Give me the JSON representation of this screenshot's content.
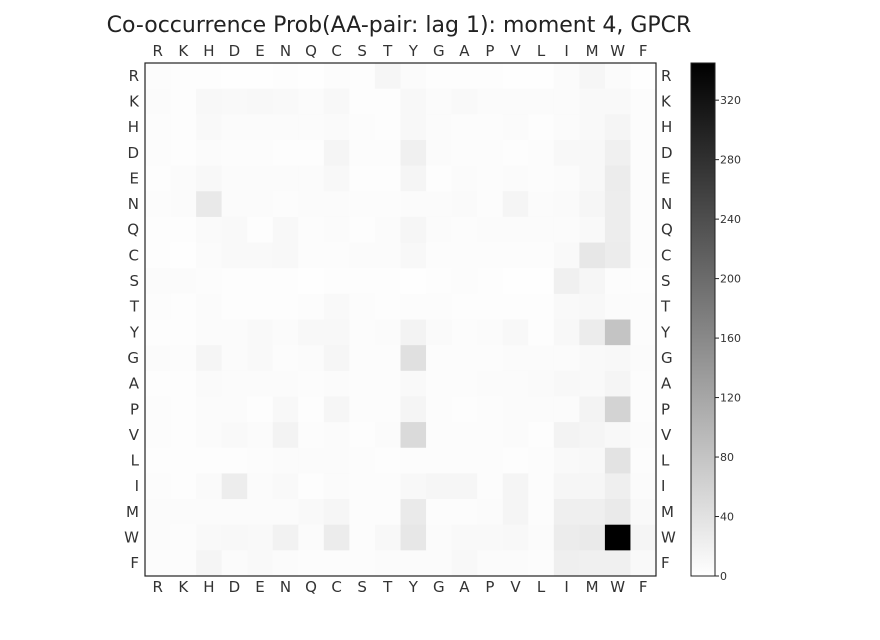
{
  "chart_data": {
    "type": "heatmap",
    "title": "Co-occurrence Prob(AA-pair: lag 1): moment 4, GPCR",
    "x_labels": [
      "R",
      "K",
      "H",
      "D",
      "E",
      "N",
      "Q",
      "C",
      "S",
      "T",
      "Y",
      "G",
      "A",
      "P",
      "V",
      "L",
      "I",
      "M",
      "W",
      "F"
    ],
    "y_labels": [
      "R",
      "K",
      "H",
      "D",
      "E",
      "N",
      "Q",
      "C",
      "S",
      "T",
      "Y",
      "G",
      "A",
      "P",
      "V",
      "L",
      "I",
      "M",
      "W",
      "F"
    ],
    "colorscale": {
      "min": 0,
      "max": 345,
      "low_color": "#ffffff",
      "high_color": "#000000",
      "ticks": [
        0,
        40,
        80,
        120,
        160,
        200,
        240,
        280,
        320
      ]
    },
    "values": [
      [
        4,
        3,
        3,
        2,
        2,
        3,
        2,
        4,
        3,
        12,
        6,
        3,
        3,
        3,
        2,
        2,
        5,
        12,
        6,
        2
      ],
      [
        5,
        3,
        9,
        8,
        10,
        8,
        6,
        10,
        3,
        3,
        9,
        6,
        8,
        5,
        5,
        6,
        5,
        8,
        8,
        4
      ],
      [
        4,
        3,
        8,
        6,
        6,
        6,
        6,
        7,
        4,
        3,
        10,
        5,
        4,
        4,
        5,
        3,
        5,
        8,
        14,
        4
      ],
      [
        4,
        3,
        6,
        4,
        4,
        3,
        3,
        14,
        4,
        4,
        20,
        6,
        4,
        4,
        3,
        4,
        10,
        10,
        20,
        4
      ],
      [
        3,
        6,
        9,
        5,
        6,
        5,
        6,
        9,
        3,
        3,
        14,
        3,
        6,
        4,
        6,
        4,
        5,
        10,
        26,
        4
      ],
      [
        4,
        5,
        30,
        6,
        6,
        4,
        6,
        6,
        4,
        4,
        6,
        5,
        7,
        4,
        13,
        5,
        7,
        12,
        24,
        4
      ],
      [
        3,
        3,
        7,
        8,
        3,
        9,
        4,
        5,
        3,
        6,
        12,
        5,
        4,
        5,
        6,
        5,
        5,
        8,
        24,
        4
      ],
      [
        3,
        2,
        5,
        8,
        8,
        10,
        4,
        4,
        6,
        6,
        10,
        4,
        4,
        4,
        4,
        4,
        8,
        32,
        26,
        4
      ],
      [
        6,
        6,
        4,
        3,
        3,
        3,
        2,
        3,
        3,
        3,
        2,
        3,
        4,
        3,
        2,
        2,
        20,
        12,
        4,
        3
      ],
      [
        4,
        3,
        5,
        3,
        3,
        3,
        4,
        8,
        4,
        3,
        4,
        4,
        3,
        3,
        3,
        3,
        8,
        10,
        6,
        4
      ],
      [
        3,
        3,
        6,
        6,
        8,
        5,
        9,
        10,
        4,
        5,
        16,
        7,
        4,
        6,
        10,
        3,
        10,
        26,
        80,
        4
      ],
      [
        5,
        4,
        14,
        5,
        8,
        4,
        5,
        12,
        4,
        4,
        42,
        4,
        4,
        4,
        6,
        6,
        6,
        8,
        10,
        6
      ],
      [
        3,
        3,
        7,
        6,
        6,
        5,
        4,
        6,
        4,
        4,
        8,
        4,
        4,
        6,
        6,
        7,
        10,
        8,
        14,
        4
      ],
      [
        4,
        3,
        5,
        6,
        3,
        10,
        3,
        12,
        4,
        4,
        14,
        4,
        3,
        4,
        6,
        6,
        6,
        16,
        60,
        4
      ],
      [
        4,
        3,
        5,
        8,
        6,
        16,
        4,
        5,
        3,
        6,
        50,
        4,
        4,
        4,
        5,
        3,
        16,
        14,
        10,
        5
      ],
      [
        3,
        3,
        3,
        3,
        4,
        6,
        5,
        5,
        4,
        3,
        4,
        4,
        4,
        4,
        3,
        4,
        8,
        10,
        38,
        4
      ],
      [
        4,
        3,
        7,
        24,
        6,
        8,
        3,
        6,
        4,
        4,
        10,
        12,
        12,
        4,
        14,
        4,
        12,
        12,
        22,
        6
      ],
      [
        5,
        6,
        5,
        5,
        5,
        6,
        8,
        12,
        4,
        4,
        28,
        4,
        4,
        6,
        14,
        4,
        22,
        22,
        28,
        8
      ],
      [
        5,
        4,
        8,
        10,
        8,
        18,
        5,
        26,
        4,
        9,
        32,
        6,
        8,
        8,
        10,
        6,
        26,
        28,
        345,
        14
      ],
      [
        4,
        4,
        14,
        5,
        8,
        6,
        4,
        4,
        4,
        5,
        6,
        6,
        10,
        6,
        6,
        4,
        22,
        20,
        20,
        8
      ]
    ]
  }
}
